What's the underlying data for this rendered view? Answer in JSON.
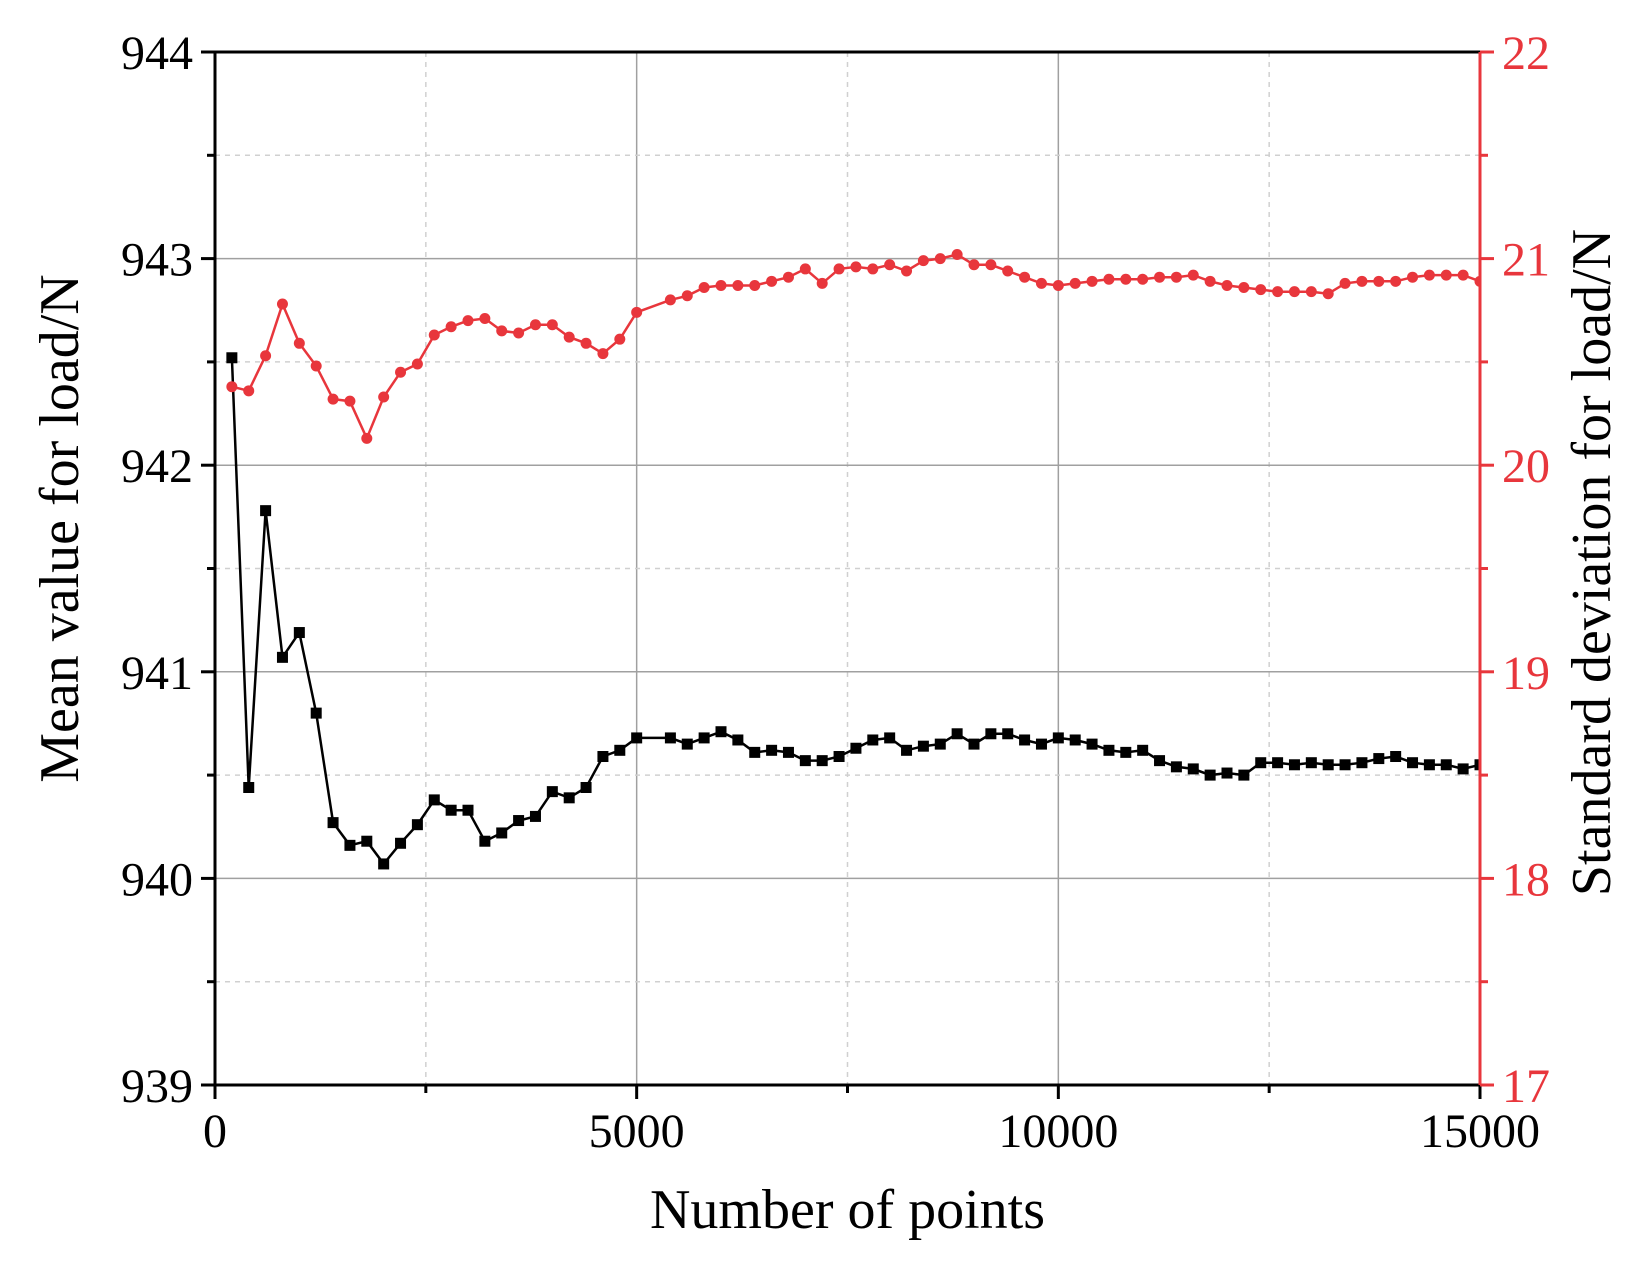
{
  "chart_data": {
    "type": "line",
    "title": "",
    "xlabel": "Number of points",
    "ylabel_left": "Mean value for load/N",
    "ylabel_right": "Standard deviation for load/N",
    "xlim": [
      0,
      15000
    ],
    "ylim_left": [
      939,
      944
    ],
    "ylim_right": [
      17,
      22
    ],
    "x_ticks": [
      0,
      5000,
      10000,
      15000
    ],
    "x_tick_labels": [
      "0",
      "5000",
      "10000",
      "15000"
    ],
    "y_left_ticks": [
      939,
      940,
      941,
      942,
      943,
      944
    ],
    "y_left_tick_labels": [
      "939",
      "940",
      "941",
      "942",
      "943",
      "944"
    ],
    "y_right_ticks": [
      17,
      18,
      19,
      20,
      21,
      22
    ],
    "y_right_tick_labels": [
      "17",
      "18",
      "19",
      "20",
      "21",
      "22"
    ],
    "grid": true,
    "series": [
      {
        "axis": "left",
        "color": "#000000",
        "marker": "square",
        "x": [
          200,
          400,
          600,
          800,
          1000,
          1200,
          1400,
          1600,
          1800,
          2000,
          2200,
          2400,
          2600,
          2800,
          3000,
          3200,
          3400,
          3600,
          3800,
          4000,
          4200,
          4400,
          4600,
          4800,
          5000,
          5400,
          5600,
          5800,
          6000,
          6200,
          6400,
          6600,
          6800,
          7000,
          7200,
          7400,
          7600,
          7800,
          8000,
          8200,
          8400,
          8600,
          8800,
          9000,
          9200,
          9400,
          9600,
          9800,
          10000,
          10200,
          10400,
          10600,
          10800,
          11000,
          11200,
          11400,
          11600,
          11800,
          12000,
          12200,
          12400,
          12600,
          12800,
          13000,
          13200,
          13400,
          13600,
          13800,
          14000,
          14200,
          14400,
          14600,
          14800,
          15000
        ],
        "values": [
          942.52,
          940.44,
          941.78,
          941.07,
          941.19,
          940.8,
          940.27,
          940.16,
          940.18,
          940.07,
          940.17,
          940.26,
          940.38,
          940.33,
          940.33,
          940.18,
          940.22,
          940.28,
          940.3,
          940.42,
          940.39,
          940.44,
          940.59,
          940.62,
          940.68,
          940.68,
          940.65,
          940.68,
          940.71,
          940.67,
          940.61,
          940.62,
          940.61,
          940.57,
          940.57,
          940.59,
          940.63,
          940.67,
          940.68,
          940.62,
          940.64,
          940.65,
          940.7,
          940.65,
          940.7,
          940.7,
          940.67,
          940.65,
          940.68,
          940.67,
          940.65,
          940.62,
          940.61,
          940.62,
          940.57,
          940.54,
          940.53,
          940.5,
          940.51,
          940.5,
          940.56,
          940.56,
          940.55,
          940.56,
          940.55,
          940.55,
          940.56,
          940.58,
          940.59,
          940.56,
          940.55,
          940.55,
          940.53,
          940.55
        ]
      },
      {
        "axis": "right",
        "color": "#e8363c",
        "marker": "circle",
        "x": [
          200,
          400,
          600,
          800,
          1000,
          1200,
          1400,
          1600,
          1800,
          2000,
          2200,
          2400,
          2600,
          2800,
          3000,
          3200,
          3400,
          3600,
          3800,
          4000,
          4200,
          4400,
          4600,
          4800,
          5000,
          5400,
          5600,
          5800,
          6000,
          6200,
          6400,
          6600,
          6800,
          7000,
          7200,
          7400,
          7600,
          7800,
          8000,
          8200,
          8400,
          8600,
          8800,
          9000,
          9200,
          9400,
          9600,
          9800,
          10000,
          10200,
          10400,
          10600,
          10800,
          11000,
          11200,
          11400,
          11600,
          11800,
          12000,
          12200,
          12400,
          12600,
          12800,
          13000,
          13200,
          13400,
          13600,
          13800,
          14000,
          14200,
          14400,
          14600,
          14800,
          15000
        ],
        "values": [
          20.38,
          20.36,
          20.53,
          20.78,
          20.59,
          20.48,
          20.32,
          20.31,
          20.13,
          20.33,
          20.45,
          20.49,
          20.63,
          20.67,
          20.7,
          20.71,
          20.65,
          20.64,
          20.68,
          20.68,
          20.62,
          20.59,
          20.54,
          20.61,
          20.74,
          20.8,
          20.82,
          20.86,
          20.87,
          20.87,
          20.87,
          20.89,
          20.91,
          20.95,
          20.88,
          20.95,
          20.96,
          20.95,
          20.97,
          20.94,
          20.99,
          21.0,
          21.02,
          20.97,
          20.97,
          20.94,
          20.91,
          20.88,
          20.87,
          20.88,
          20.89,
          20.9,
          20.9,
          20.9,
          20.91,
          20.91,
          20.92,
          20.89,
          20.87,
          20.86,
          20.85,
          20.84,
          20.84,
          20.84,
          20.83,
          20.88,
          20.89,
          20.89,
          20.89,
          20.91,
          20.92,
          20.92,
          20.92,
          20.89
        ]
      }
    ]
  }
}
